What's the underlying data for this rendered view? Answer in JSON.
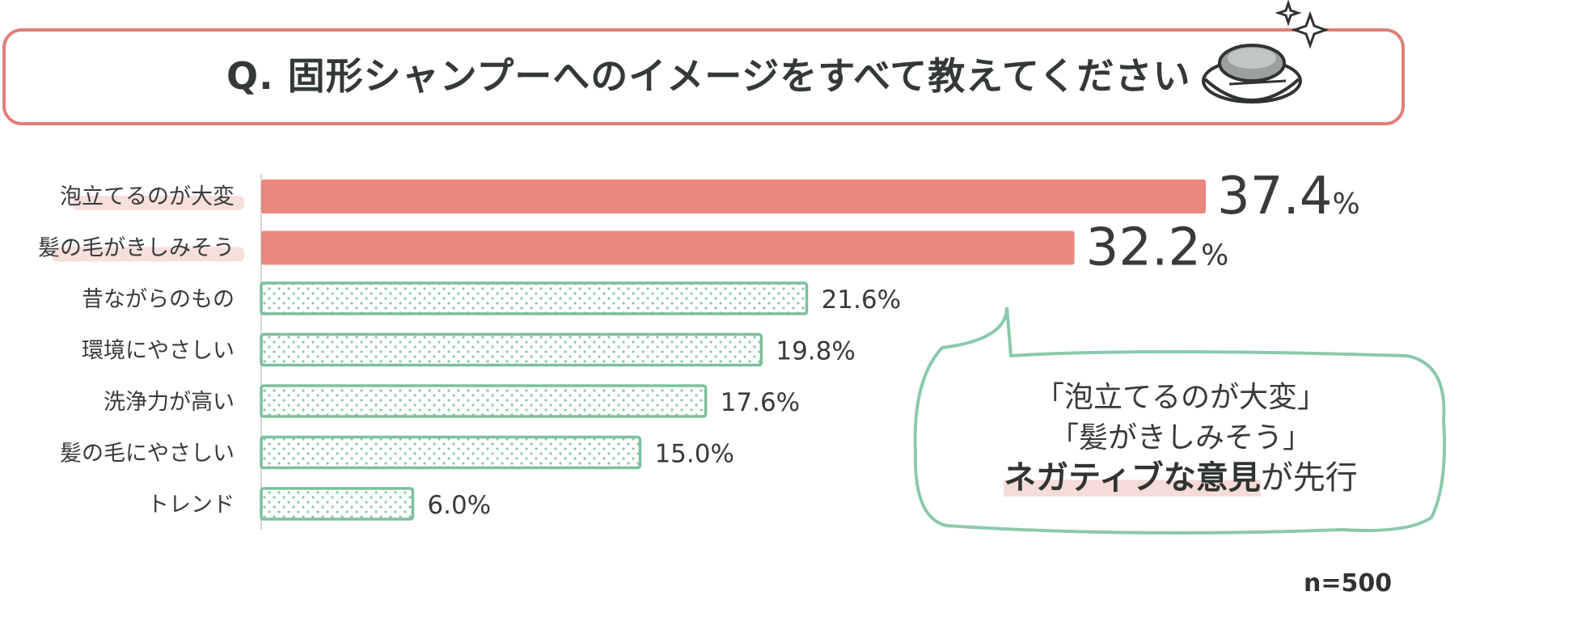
{
  "title": "Q. 固形シャンプーへのイメージをすべて教えてください",
  "sample_note": "n=500",
  "colors": {
    "highlight_bar": "#e8887e",
    "normal_bar_stroke": "#7dbf9c",
    "normal_bar_dot": "#8cc7a8",
    "title_border": "#e07f78",
    "callout_border": "#8cc9ac",
    "label_highlight": "#f7dfdc"
  },
  "callout": {
    "line1": "「泡立てるのが大変」",
    "line2": "「髪がきしみそう」",
    "line3_strong": "ネガティブな意見",
    "line3_rest": "が先行"
  },
  "chart_data": {
    "type": "bar",
    "orientation": "horizontal",
    "categories": [
      "泡立てるのが大変",
      "髪の毛がきしみそう",
      "昔ながらのもの",
      "環境にやさしい",
      "洗浄力が高い",
      "髪の毛にやさしい",
      "トレンド"
    ],
    "values": [
      37.4,
      32.2,
      21.6,
      19.8,
      17.6,
      15.0,
      6.0
    ],
    "value_labels": [
      "37.4",
      "32.2",
      "21.6%",
      "19.8%",
      "17.6%",
      "15.0%",
      "6.0%"
    ],
    "highlighted": [
      true,
      true,
      false,
      false,
      false,
      false,
      false
    ],
    "unit": "%",
    "xlim": [
      0,
      37.4
    ],
    "grid": false
  }
}
